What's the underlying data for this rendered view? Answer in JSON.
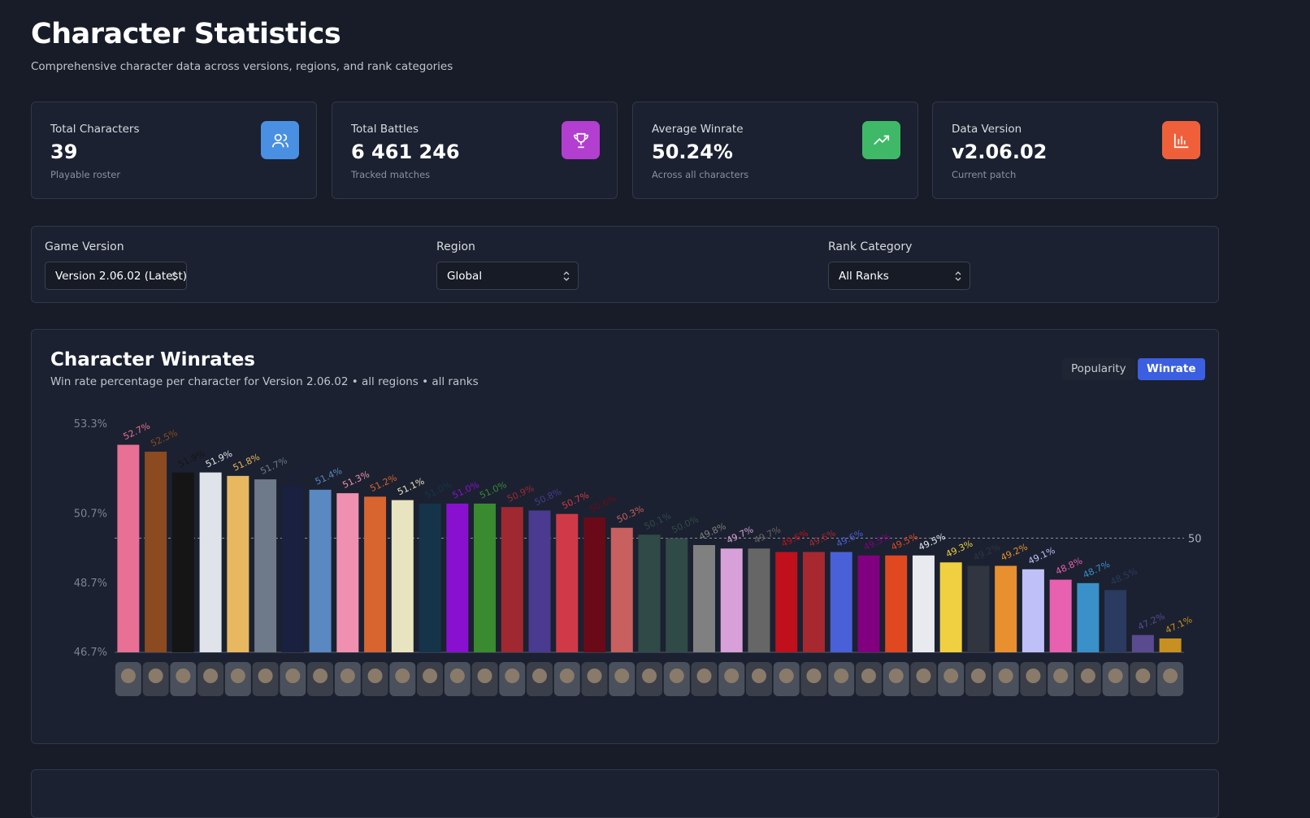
{
  "header": {
    "title": "Character Statistics",
    "subtitle": "Comprehensive character data across versions, regions, and rank categories"
  },
  "stats": [
    {
      "label": "Total Characters",
      "value": "39",
      "note": "Playable roster"
    },
    {
      "label": "Total Battles",
      "value": "6 461 246",
      "note": "Tracked matches"
    },
    {
      "label": "Average Winrate",
      "value": "50.24%",
      "note": "Across all characters"
    },
    {
      "label": "Data Version",
      "value": "v2.06.02",
      "note": "Current patch"
    }
  ],
  "filters": [
    {
      "label": "Game Version",
      "selected": "Version 2.06.02 (Latest)"
    },
    {
      "label": "Region",
      "selected": "Global"
    },
    {
      "label": "Rank Category",
      "selected": "All Ranks"
    }
  ],
  "toggle": [
    "Popularity",
    "Winrate"
  ],
  "chart_data": {
    "type": "bar",
    "title": "Character Winrates",
    "subtitle": "Win rate percentage per character for Version 2.06.02 • all regions • all ranks",
    "categories": [
      null,
      null,
      null,
      null,
      null,
      null,
      null,
      null,
      null,
      null,
      null,
      null,
      null,
      null,
      null,
      null,
      null,
      null,
      null,
      null,
      null,
      null,
      null,
      null,
      null,
      null,
      null,
      null,
      null,
      null,
      null,
      null,
      null,
      null,
      null,
      null,
      null,
      null,
      null
    ],
    "values": [
      52.7,
      52.5,
      51.9,
      51.9,
      51.8,
      51.7,
      51.5,
      51.4,
      51.3,
      51.2,
      51.1,
      51.0,
      51.0,
      51.0,
      50.9,
      50.8,
      50.7,
      50.6,
      50.3,
      50.1,
      50.0,
      49.8,
      49.7,
      49.7,
      49.6,
      49.6,
      49.6,
      49.5,
      49.5,
      49.5,
      49.3,
      49.2,
      49.2,
      49.1,
      48.8,
      48.7,
      48.5,
      47.2,
      47.1
    ],
    "value_labels": [
      "52.7%",
      "52.5%",
      "51.9%",
      "51.9%",
      "51.8%",
      "51.7%",
      "51.5%",
      "51.4%",
      "51.3%",
      "51.2%",
      "51.1%",
      "51.0%",
      "51.0%",
      "51.0%",
      "50.9%",
      "50.8%",
      "50.7%",
      "50.6%",
      "50.3%",
      "50.1%",
      "50.0%",
      "49.8%",
      "49.7%",
      "49.7%",
      "49.6%",
      "49.6%",
      "49.6%",
      "49.5%",
      "49.5%",
      "49.5%",
      "49.3%",
      "49.2%",
      "49.2%",
      "49.1%",
      "48.8%",
      "48.7%",
      "48.5%",
      "47.2%",
      "47.1%"
    ],
    "colors": [
      "#e87095",
      "#8b4a20",
      "#151515",
      "#e0e4ea",
      "#e8b860",
      "#6e7a8a",
      "#1a2040",
      "#5a88c0",
      "#f090b0",
      "#d86430",
      "#e8e4c0",
      "#15344a",
      "#8a10d0",
      "#3a8a30",
      "#a02830",
      "#4a3a90",
      "#d03a48",
      "#6a0a18",
      "#c86060",
      "#304a48",
      "#304a48",
      "#808080",
      "#d8a0d8",
      "#666666",
      "#c0101c",
      "#a82830",
      "#4a60d8",
      "#800080",
      "#e04820",
      "#e8eaf0",
      "#f0d040",
      "#303540",
      "#e89030",
      "#c0c0f8",
      "#e860b0",
      "#3a90c8",
      "#2a3a60",
      "#5a4a90",
      "#c89020"
    ],
    "ylim": [
      46.7,
      53.3
    ],
    "yticks": [
      {
        "value": 46.7,
        "label": "46.7%"
      },
      {
        "value": 48.7,
        "label": "48.7%"
      },
      {
        "value": 50.7,
        "label": "50.7%"
      },
      {
        "value": 53.3,
        "label": "53.3%"
      }
    ],
    "reference_line": 50,
    "grid": false
  }
}
